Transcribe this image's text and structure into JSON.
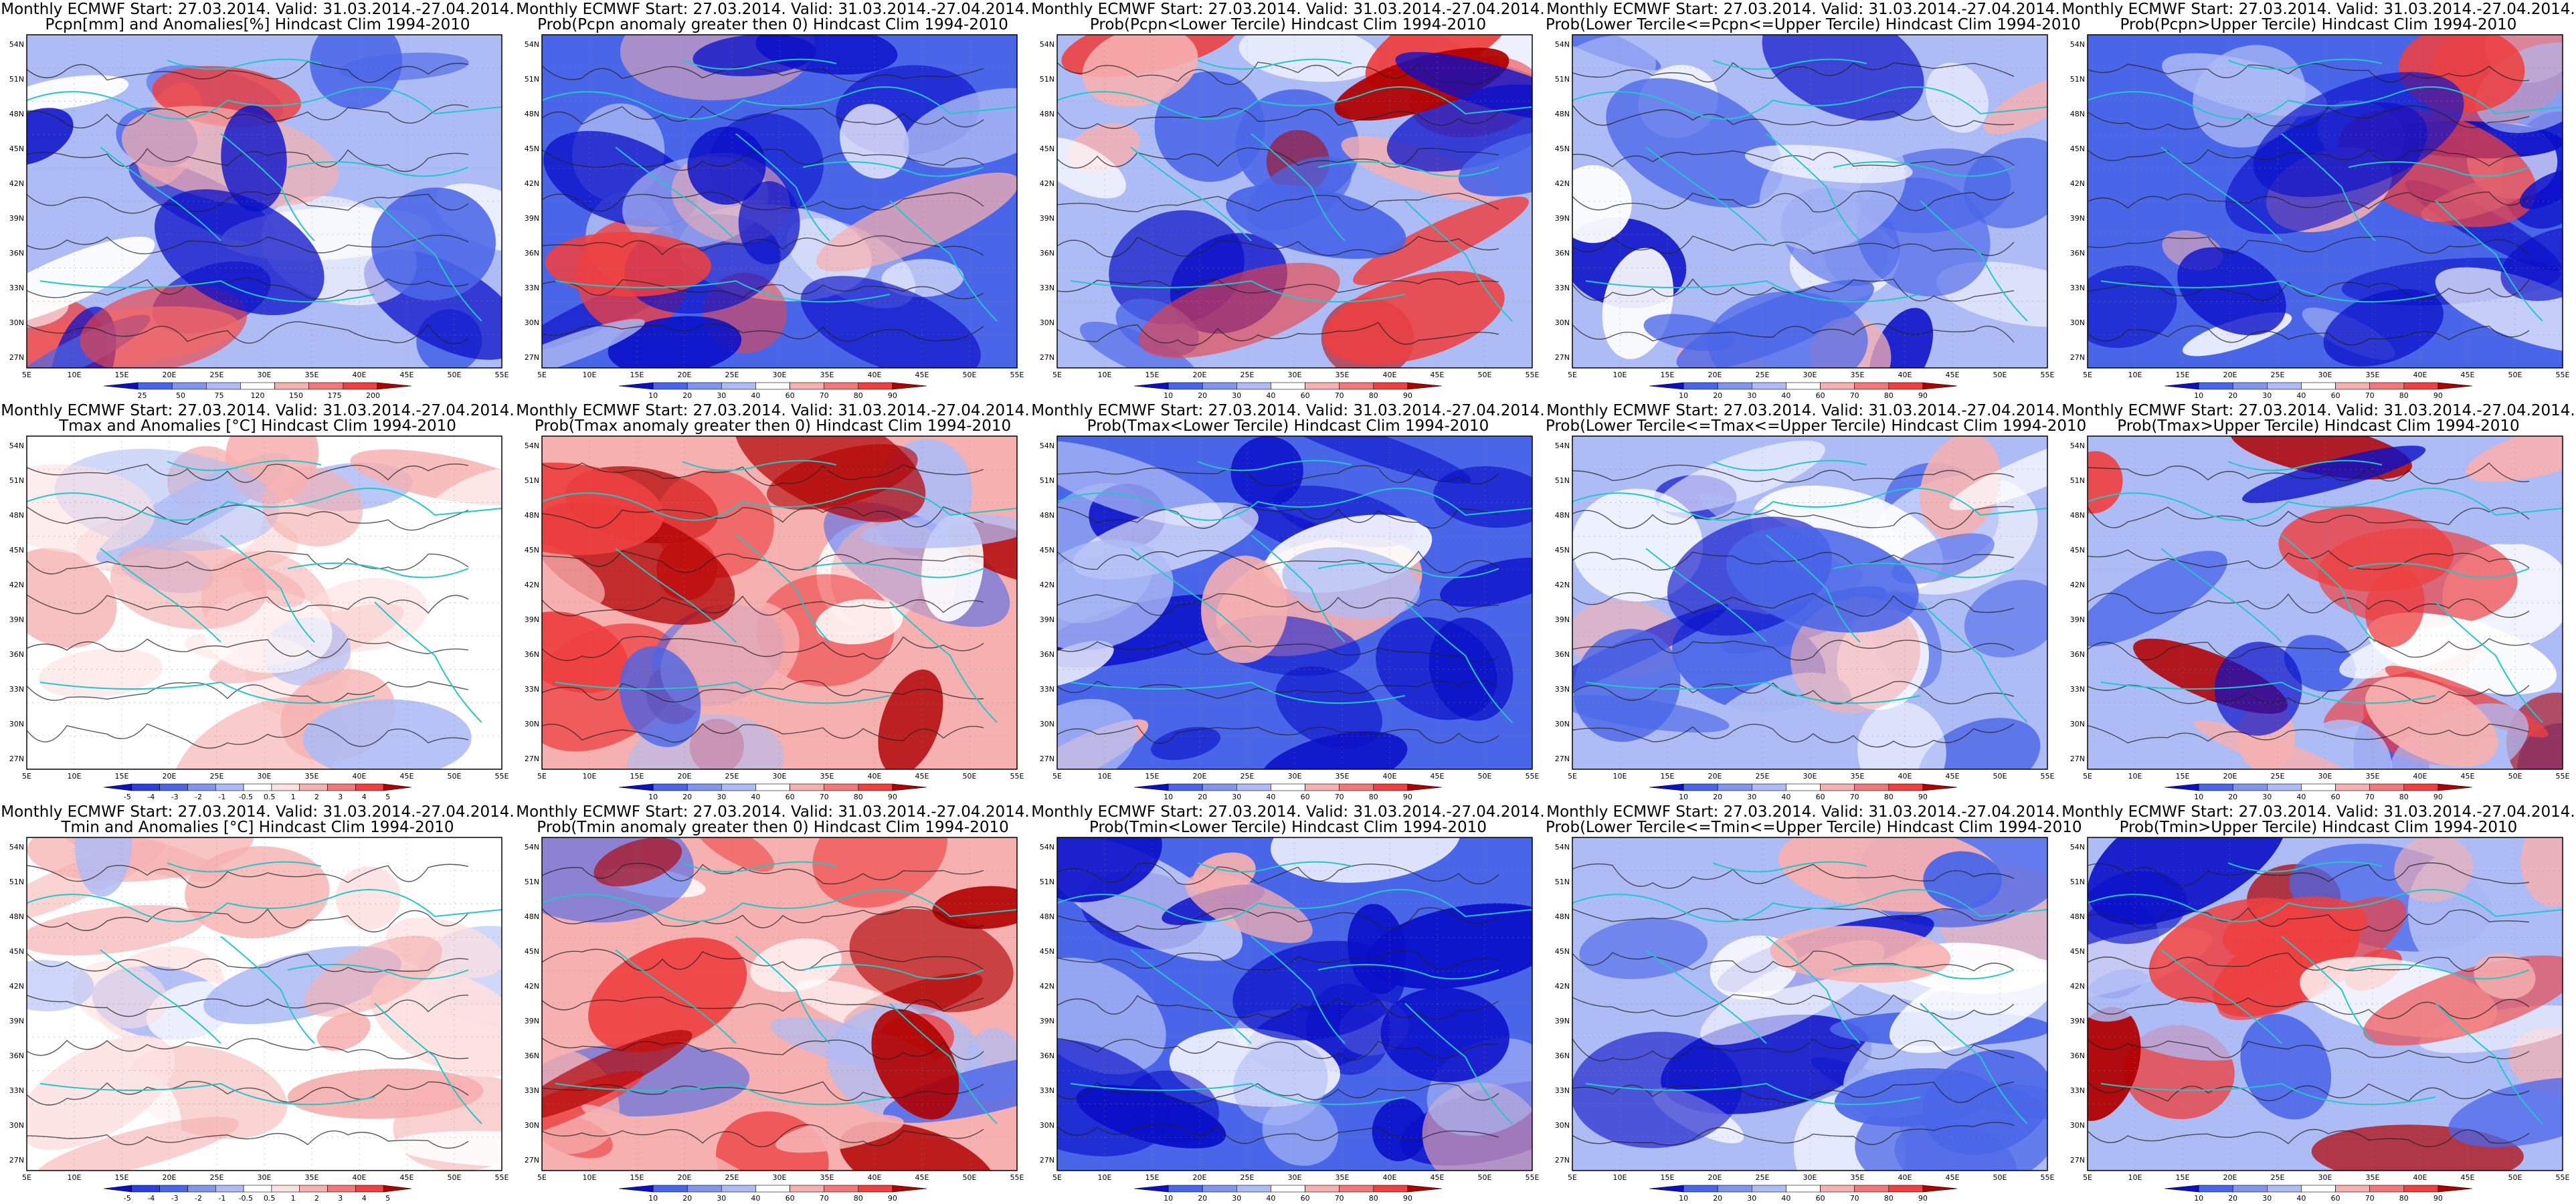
{
  "common": {
    "lat_ticks": [
      "54N",
      "51N",
      "48N",
      "45N",
      "42N",
      "39N",
      "36N",
      "33N",
      "30N",
      "27N"
    ],
    "lon_ticks": [
      "5E",
      "10E",
      "15E",
      "20E",
      "25E",
      "30E",
      "35E",
      "40E",
      "45E",
      "50E",
      "55E"
    ]
  },
  "colors": {
    "blue_deep": "#0a10c8",
    "blue_mid": "#4a66e8",
    "blue_light": "#aebcf5",
    "red_light": "#f6b0b0",
    "red_mid": "#ee4040",
    "red_deep": "#b00000",
    "coast": "#20c8c8",
    "contour": "#222222"
  },
  "panels": [
    {
      "title1": "Monthly ECMWF Start: 27.03.2014. Valid: 31.03.2014.-27.04.2014.",
      "title2": "Pcpn[mm] and Anomalies[%] Hindcast Clim 1994-2010",
      "theme": "pcpn_anom",
      "legend": [
        "25",
        "50",
        "75",
        "120",
        "150",
        "175",
        "200"
      ]
    },
    {
      "title1": "Monthly ECMWF Start: 27.03.2014. Valid: 31.03.2014.-27.04.2014.",
      "title2": "Prob(Pcpn anomaly greater then 0) Hindcast Clim 1994-2010",
      "theme": "blue",
      "legend": [
        "10",
        "20",
        "30",
        "40",
        "60",
        "70",
        "80",
        "90"
      ]
    },
    {
      "title1": "Monthly ECMWF Start: 27.03.2014. Valid: 31.03.2014.-27.04.2014.",
      "title2": "Prob(Pcpn<Lower Tercile) Hindcast Clim 1994-2010",
      "theme": "pcpn_lower",
      "legend": [
        "10",
        "20",
        "30",
        "40",
        "60",
        "70",
        "80",
        "90"
      ]
    },
    {
      "title1": "Monthly ECMWF Start: 27.03.2014. Valid: 31.03.2014.-27.04.2014.",
      "title2": "Prob(Lower Tercile<=Pcpn<=Upper Tercile) Hindcast Clim 1994-2010",
      "theme": "mixed_blue",
      "legend": [
        "10",
        "20",
        "30",
        "40",
        "60",
        "70",
        "80",
        "90"
      ]
    },
    {
      "title1": "Monthly ECMWF Start: 27.03.2014. Valid: 31.03.2014.-27.04.2014.",
      "title2": "Prob(Pcpn>Upper Tercile) Hindcast Clim 1994-2010",
      "theme": "blue",
      "legend": [
        "10",
        "20",
        "30",
        "40",
        "60",
        "70",
        "80",
        "90"
      ]
    },
    {
      "title1": "Monthly ECMWF Start: 27.03.2014. Valid: 31.03.2014.-27.04.2014.",
      "title2": "Tmax and Anomalies [°C] Hindcast Clim 1994-2010",
      "theme": "light_red",
      "legend": [
        "-5",
        "-4",
        "-3",
        "-2",
        "-1",
        "-0.5",
        "0.5",
        "1",
        "2",
        "3",
        "4",
        "5"
      ]
    },
    {
      "title1": "Monthly ECMWF Start: 27.03.2014. Valid: 31.03.2014.-27.04.2014.",
      "title2": "Prob(Tmax anomaly greater then 0) Hindcast Clim 1994-2010",
      "theme": "red",
      "legend": [
        "10",
        "20",
        "30",
        "40",
        "60",
        "70",
        "80",
        "90"
      ]
    },
    {
      "title1": "Monthly ECMWF Start: 27.03.2014. Valid: 31.03.2014.-27.04.2014.",
      "title2": "Prob(Tmax<Lower Tercile) Hindcast Clim 1994-2010",
      "theme": "blue_strong",
      "legend": [
        "10",
        "20",
        "30",
        "40",
        "60",
        "70",
        "80",
        "90"
      ]
    },
    {
      "title1": "Monthly ECMWF Start: 27.03.2014. Valid: 31.03.2014.-27.04.2014.",
      "title2": "Prob(Lower Tercile<=Tmax<=Upper Tercile) Hindcast Clim 1994-2010",
      "theme": "mixed_blue",
      "legend": [
        "10",
        "20",
        "30",
        "40",
        "60",
        "70",
        "80",
        "90"
      ]
    },
    {
      "title1": "Monthly ECMWF Start: 27.03.2014. Valid: 31.03.2014.-27.04.2014.",
      "title2": "Prob(Tmax>Upper Tercile) Hindcast Clim 1994-2010",
      "theme": "red_upper",
      "legend": [
        "10",
        "20",
        "30",
        "40",
        "60",
        "70",
        "80",
        "90"
      ]
    },
    {
      "title1": "Monthly ECMWF Start: 27.03.2014. Valid: 31.03.2014.-27.04.2014.",
      "title2": "Tmin and Anomalies [°C] Hindcast Clim 1994-2010",
      "theme": "light_red",
      "legend": [
        "-5",
        "-4",
        "-3",
        "-2",
        "-1",
        "-0.5",
        "0.5",
        "1",
        "2",
        "3",
        "4",
        "5"
      ]
    },
    {
      "title1": "Monthly ECMWF Start: 27.03.2014. Valid: 31.03.2014.-27.04.2014.",
      "title2": "Prob(Tmin anomaly greater then 0) Hindcast Clim 1994-2010",
      "theme": "red",
      "legend": [
        "10",
        "20",
        "30",
        "40",
        "60",
        "70",
        "80",
        "90"
      ]
    },
    {
      "title1": "Monthly ECMWF Start: 27.03.2014. Valid: 31.03.2014.-27.04.2014.",
      "title2": "Prob(Tmin<Lower Tercile) Hindcast Clim 1994-2010",
      "theme": "blue_strong",
      "legend": [
        "10",
        "20",
        "30",
        "40",
        "60",
        "70",
        "80",
        "90"
      ]
    },
    {
      "title1": "Monthly ECMWF Start: 27.03.2014. Valid: 31.03.2014.-27.04.2014.",
      "title2": "Prob(Lower Tercile<=Tmin<=Upper Tercile) Hindcast Clim 1994-2010",
      "theme": "mixed_blue",
      "legend": [
        "10",
        "20",
        "30",
        "40",
        "60",
        "70",
        "80",
        "90"
      ]
    },
    {
      "title1": "Monthly ECMWF Start: 27.03.2014. Valid: 31.03.2014.-27.04.2014.",
      "title2": "Prob(Tmin>Upper Tercile) Hindcast Clim 1994-2010",
      "theme": "red_upper",
      "legend": [
        "10",
        "20",
        "30",
        "40",
        "60",
        "70",
        "80",
        "90"
      ]
    }
  ]
}
